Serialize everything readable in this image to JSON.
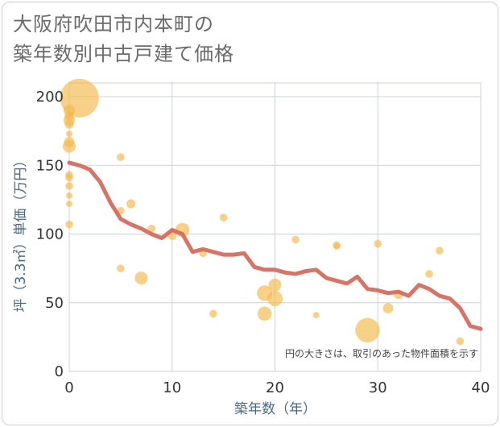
{
  "chart_data": {
    "type": "scatter",
    "title_lines": [
      "大阪府吹田市内本町の",
      "築年数別中古戸建て価格"
    ],
    "xlabel": "築年数（年）",
    "ylabel": "坪（3.3㎡）単価（万円）",
    "xlim": [
      0,
      40
    ],
    "ylim": [
      0,
      210
    ],
    "x_ticks": [
      0,
      10,
      20,
      30,
      40
    ],
    "y_ticks": [
      0,
      50,
      100,
      150,
      200
    ],
    "grid": true,
    "note": "円の大きさは、取引のあった物件面積を示す",
    "colors": {
      "bubble": "#f5b84a",
      "line": "#d2695a",
      "grid": "#c8d3dc"
    },
    "series": [
      {
        "type": "bubble",
        "points": [
          {
            "x": 1,
            "y": 199,
            "s": 3.0
          },
          {
            "x": 0,
            "y": 190,
            "s": 0.9
          },
          {
            "x": 0,
            "y": 186,
            "s": 0.7
          },
          {
            "x": 0,
            "y": 183,
            "s": 0.9
          },
          {
            "x": 0,
            "y": 180,
            "s": 0.7
          },
          {
            "x": 0,
            "y": 173,
            "s": 0.5
          },
          {
            "x": 0,
            "y": 167,
            "s": 0.8
          },
          {
            "x": 0,
            "y": 164,
            "s": 1.0
          },
          {
            "x": 0,
            "y": 143,
            "s": 0.6
          },
          {
            "x": 0,
            "y": 141,
            "s": 0.6
          },
          {
            "x": 0,
            "y": 135,
            "s": 0.6
          },
          {
            "x": 0,
            "y": 128,
            "s": 0.5
          },
          {
            "x": 0,
            "y": 122,
            "s": 0.5
          },
          {
            "x": 0,
            "y": 107,
            "s": 0.6
          },
          {
            "x": 5,
            "y": 156,
            "s": 0.6
          },
          {
            "x": 6,
            "y": 122,
            "s": 0.7
          },
          {
            "x": 5,
            "y": 117,
            "s": 0.6
          },
          {
            "x": 5,
            "y": 75,
            "s": 0.6
          },
          {
            "x": 7,
            "y": 68,
            "s": 1.0
          },
          {
            "x": 8,
            "y": 104,
            "s": 0.6
          },
          {
            "x": 10,
            "y": 99,
            "s": 0.7
          },
          {
            "x": 11,
            "y": 103,
            "s": 1.1
          },
          {
            "x": 13,
            "y": 86,
            "s": 0.6
          },
          {
            "x": 14,
            "y": 42,
            "s": 0.6
          },
          {
            "x": 15,
            "y": 112,
            "s": 0.6
          },
          {
            "x": 19,
            "y": 57,
            "s": 1.2
          },
          {
            "x": 19,
            "y": 42,
            "s": 1.1
          },
          {
            "x": 20,
            "y": 63,
            "s": 1.0
          },
          {
            "x": 20,
            "y": 53,
            "s": 1.2
          },
          {
            "x": 22,
            "y": 96,
            "s": 0.6
          },
          {
            "x": 24,
            "y": 41,
            "s": 0.5
          },
          {
            "x": 26,
            "y": 92,
            "s": 0.6
          },
          {
            "x": 26,
            "y": 91,
            "s": 0.5
          },
          {
            "x": 29,
            "y": 30,
            "s": 1.9
          },
          {
            "x": 30,
            "y": 93,
            "s": 0.6
          },
          {
            "x": 31,
            "y": 46,
            "s": 0.8
          },
          {
            "x": 32,
            "y": 56,
            "s": 0.7
          },
          {
            "x": 35,
            "y": 71,
            "s": 0.6
          },
          {
            "x": 36,
            "y": 88,
            "s": 0.6
          },
          {
            "x": 38,
            "y": 22,
            "s": 0.6
          }
        ]
      },
      {
        "type": "line",
        "x": [
          0,
          1,
          2,
          3,
          4,
          5,
          6,
          7,
          8,
          9,
          10,
          11,
          12,
          13,
          14,
          15,
          16,
          17,
          18,
          19,
          20,
          21,
          22,
          23,
          24,
          25,
          26,
          27,
          28,
          29,
          30,
          31,
          32,
          33,
          34,
          35,
          36,
          37,
          38,
          39,
          40
        ],
        "y": [
          152,
          150,
          147,
          138,
          123,
          111,
          107,
          104,
          100,
          97,
          103,
          100,
          87,
          89,
          87,
          85,
          85,
          86,
          76,
          74,
          74,
          72,
          71,
          73,
          74,
          68,
          66,
          64,
          69,
          60,
          59,
          57,
          58,
          55,
          63,
          60,
          55,
          53,
          46,
          33,
          31
        ]
      }
    ]
  }
}
